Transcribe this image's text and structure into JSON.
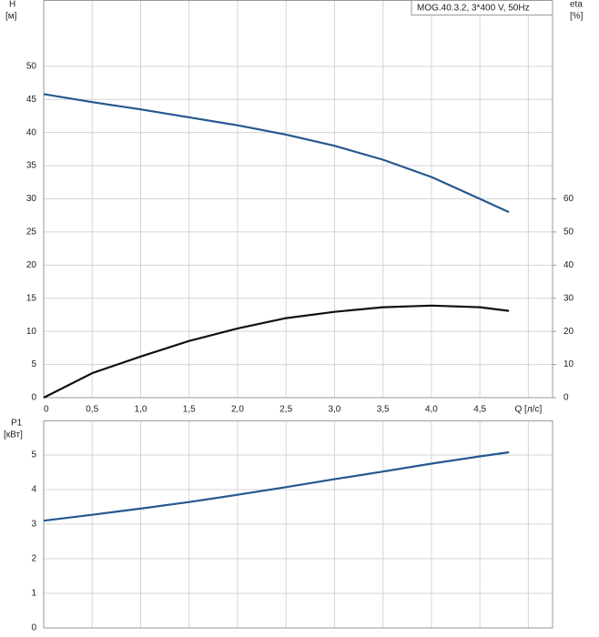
{
  "chart_data": [
    {
      "type": "line",
      "annotation": "MOG.40.3.2, 3*400 V, 50Hz",
      "ylabel": "H",
      "yunit": "[м]",
      "y2label": "eta",
      "y2unit": "[%]",
      "x": [
        0,
        0.5,
        1.0,
        1.5,
        2.0,
        2.5,
        3.0,
        3.5,
        4.0,
        4.5,
        4.8
      ],
      "series": [
        {
          "color": "#25588f",
          "values": [
            45.8,
            44.6,
            43.5,
            42.3,
            41.1,
            39.7,
            38.0,
            35.9,
            33.3,
            30.0,
            28.0
          ]
        },
        {
          "color": "#111111",
          "axis": "y2",
          "values": [
            0,
            7.4,
            12.4,
            17.1,
            20.9,
            24.0,
            25.9,
            27.3,
            27.8,
            27.3,
            26.2
          ]
        }
      ],
      "xlim": [
        0,
        5.25
      ],
      "xticks": [
        0,
        {
          "value": 0.5,
          "label": "0,5"
        },
        {
          "value": 1,
          "label": "1,0"
        },
        {
          "value": 1.5,
          "label": "1,5"
        },
        {
          "value": 2,
          "label": "2,0"
        },
        {
          "value": 2.5,
          "label": "2,5"
        },
        {
          "value": 3,
          "label": "3,0"
        },
        {
          "value": 3.5,
          "label": "3,5"
        },
        {
          "value": 4,
          "label": "4,0"
        },
        {
          "value": 4.5,
          "label": "4,5"
        },
        {
          "value": 5,
          "label": "Q [л/с]"
        }
      ],
      "ylim": [
        0,
        60
      ],
      "yticks": [
        0,
        5,
        10,
        15,
        20,
        25,
        30,
        35,
        40,
        45,
        50
      ],
      "y2lim": [
        0,
        120
      ],
      "y2ticks": [
        0,
        10,
        20,
        30,
        40,
        50,
        60
      ],
      "grid": true
    },
    {
      "type": "line",
      "ylabel": "P1",
      "yunit": "[кВт]",
      "x": [
        0,
        0.5,
        1.0,
        1.5,
        2.0,
        2.5,
        3.0,
        3.5,
        4.0,
        4.5,
        4.8
      ],
      "series": [
        {
          "color": "#25588f",
          "values": [
            3.1,
            3.27,
            3.45,
            3.64,
            3.85,
            4.07,
            4.3,
            4.52,
            4.75,
            4.96,
            5.08
          ]
        }
      ],
      "xlim": [
        0,
        5.25
      ],
      "xgrid": [
        0,
        0.5,
        1,
        1.5,
        2,
        2.5,
        3,
        3.5,
        4,
        4.5,
        5
      ],
      "ylim": [
        0,
        6
      ],
      "yticks": [
        0,
        1,
        2,
        3,
        4,
        5
      ],
      "grid": true
    }
  ]
}
